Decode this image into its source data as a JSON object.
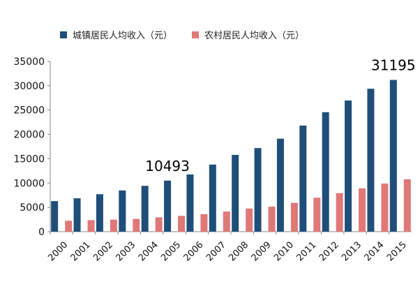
{
  "chart_data": {
    "type": "bar",
    "categories": [
      "2000",
      "2001",
      "2002",
      "2003",
      "2004",
      "2005",
      "2006",
      "2007",
      "2008",
      "2009",
      "2010",
      "2011",
      "2012",
      "2013",
      "2014",
      "2015"
    ],
    "series": [
      {
        "name": "城镇居民人均收入（元）",
        "color": "#1f4e79",
        "values": [
          6280,
          6860,
          7700,
          8470,
          9420,
          10493,
          11760,
          13790,
          15780,
          17180,
          19110,
          21810,
          24560,
          26960,
          29380,
          31195
        ]
      },
      {
        "name": "农村居民人均收入（元）",
        "color": "#e07878",
        "values": [
          2250,
          2370,
          2480,
          2620,
          2940,
          3250,
          3590,
          4140,
          4760,
          5150,
          5920,
          6980,
          7920,
          8900,
          9890,
          10770
        ]
      }
    ],
    "ylim": [
      0,
      35000
    ],
    "yticks": [
      "0",
      "5000",
      "10000",
      "15000",
      "20000",
      "25000",
      "30000",
      "35000"
    ],
    "annotations": [
      {
        "text": "10493",
        "category": "2005",
        "series": 0
      },
      {
        "text": "31195",
        "category": "2015",
        "series": 0
      }
    ],
    "legend_position": "top",
    "grid": false
  }
}
